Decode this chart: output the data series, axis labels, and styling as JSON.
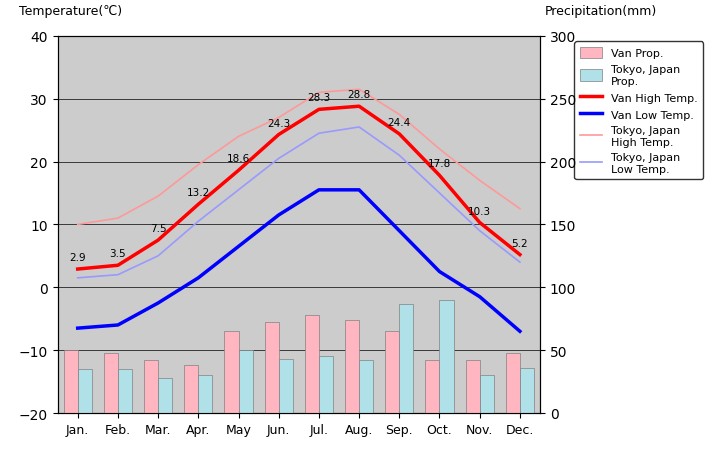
{
  "months": [
    "Jan.",
    "Feb.",
    "Mar.",
    "Apr.",
    "May",
    "Jun.",
    "Jul.",
    "Aug.",
    "Sep.",
    "Oct.",
    "Nov.",
    "Dec."
  ],
  "van_high_temp": [
    2.9,
    3.5,
    7.5,
    13.2,
    18.6,
    24.3,
    28.3,
    28.8,
    24.4,
    17.8,
    10.3,
    5.2
  ],
  "van_low_temp": [
    -6.5,
    -6.0,
    -2.5,
    1.5,
    6.5,
    11.5,
    15.5,
    15.5,
    9.0,
    2.5,
    -1.5,
    -7.0
  ],
  "tokyo_high_temp": [
    10.0,
    11.0,
    14.5,
    19.5,
    24.0,
    27.0,
    31.0,
    31.5,
    27.5,
    22.0,
    17.0,
    12.5
  ],
  "tokyo_low_temp": [
    1.5,
    2.0,
    5.0,
    10.5,
    15.5,
    20.5,
    24.5,
    25.5,
    21.0,
    15.0,
    9.0,
    4.0
  ],
  "van_precip": [
    15.0,
    15.0,
    10.0,
    10.0,
    18.0,
    20.0,
    21.0,
    20.0,
    18.0,
    11.0,
    11.0,
    12.0
  ],
  "tokyo_precip": [
    9.0,
    9.0,
    7.0,
    7.5,
    12.5,
    11.0,
    11.5,
    11.0,
    22.0,
    22.5,
    7.5,
    9.0
  ],
  "van_precip_mm": [
    50.0,
    48.0,
    42.0,
    38.0,
    65.0,
    72.0,
    78.0,
    74.0,
    65.0,
    42.0,
    42.0,
    48.0
  ],
  "tokyo_precip_mm": [
    35.0,
    35.0,
    28.0,
    30.0,
    50.0,
    43.0,
    45.0,
    42.0,
    87.0,
    90.0,
    30.0,
    36.0
  ],
  "temp_ylim": [
    -20,
    40
  ],
  "precip_ylim": [
    0,
    300
  ],
  "van_high_color": "#ff0000",
  "van_low_color": "#0000ff",
  "tokyo_high_color": "#ff9999",
  "tokyo_low_color": "#9999ff",
  "van_precip_color": "#ffb6c1",
  "tokyo_precip_color": "#b0e0e8",
  "background_color": "#cccccc",
  "plot_bg_color": "#cccccc",
  "title_left": "Temperature(℃)",
  "title_right": "Precipitation(mm)",
  "legend_labels": [
    "Van Prop.",
    "Tokyo, Japan\nProp.",
    "Van High Temp.",
    "Van Low Temp.",
    "Tokyo, Japan\nHigh Temp.",
    "Tokyo, Japan\nLow Temp."
  ]
}
